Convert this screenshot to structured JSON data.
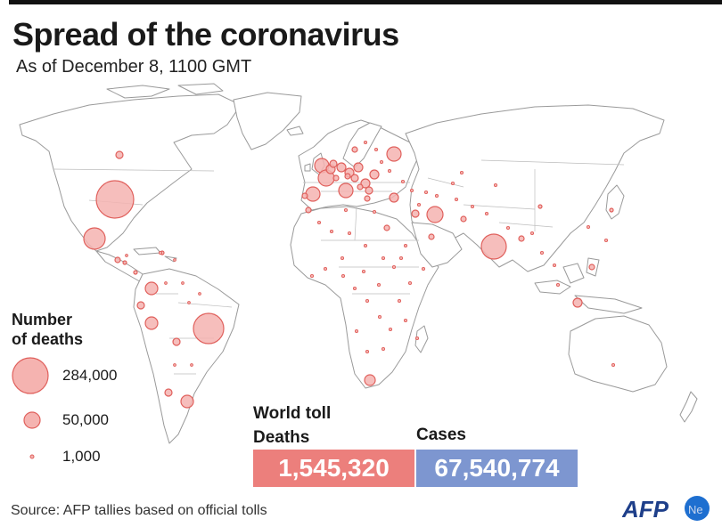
{
  "header": {
    "title": "Spread of the coronavirus",
    "subtitle": "As of December 8, 1100 GMT"
  },
  "legend": {
    "title_line1": "Number",
    "title_line2": "of deaths",
    "items": [
      {
        "label": "284,000",
        "value": 284000
      },
      {
        "label": "50,000",
        "value": 50000
      },
      {
        "label": "1,000",
        "value": 1000
      }
    ]
  },
  "world_toll": {
    "heading": "World toll",
    "deaths_label": "Deaths",
    "cases_label": "Cases",
    "deaths_value": "1,545,320",
    "cases_value": "67,540,774"
  },
  "source": "Source: AFP tallies based on official tolls",
  "logo": {
    "text": "AFP",
    "icon": "afp-globe-logo"
  },
  "colors": {
    "bubble_fill": "#f5b3b0",
    "bubble_stroke": "#e0605c",
    "deaths_box": "#ec7f7c",
    "cases_box": "#7d96d0",
    "land_stroke": "#9a9a9a"
  }
}
